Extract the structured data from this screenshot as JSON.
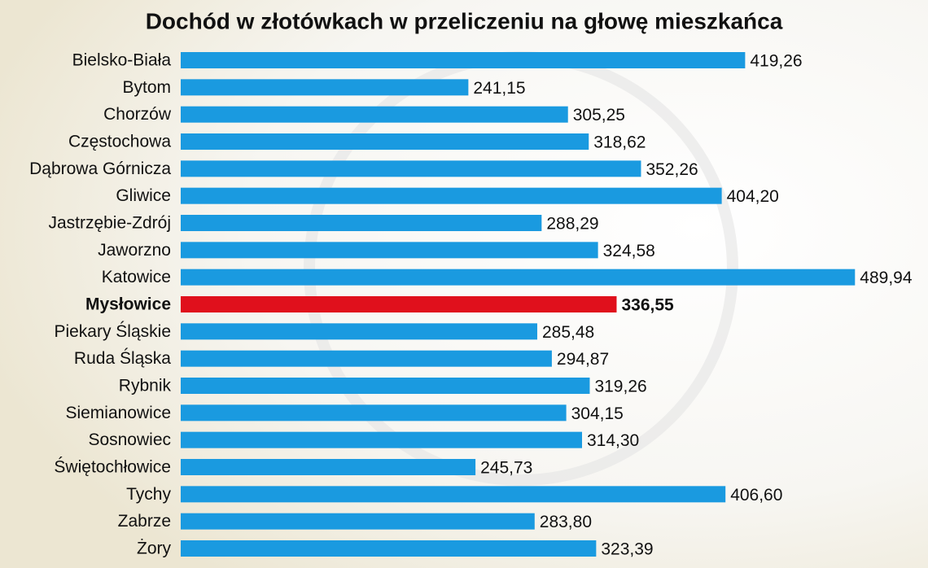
{
  "chart_data": {
    "type": "hbar",
    "title": "Dochód w złotówkach w przeliczeniu na głowę mieszkańca",
    "categories": [
      "Bielsko-Biała",
      "Bytom",
      "Chorzów",
      "Częstochowa",
      "Dąbrowa Górnicza",
      "Gliwice",
      "Jastrzębie-Zdrój",
      "Jaworzno",
      "Katowice",
      "Mysłowice",
      "Piekary Śląskie",
      "Ruda Śląska",
      "Rybnik",
      "Siemianowice",
      "Sosnowiec",
      "Świętochłowice",
      "Tychy",
      "Zabrze",
      "Żory"
    ],
    "values": [
      419.26,
      241.15,
      305.25,
      318.62,
      352.26,
      404.2,
      288.29,
      324.58,
      489.94,
      336.55,
      285.48,
      294.87,
      319.26,
      304.15,
      314.3,
      245.73,
      406.6,
      283.8,
      323.39
    ],
    "value_labels": [
      "419,26",
      "241,15",
      "305,25",
      "318,62",
      "352,26",
      "404,20",
      "288,29",
      "324,58",
      "489,94",
      "336,55",
      "285,48",
      "294,87",
      "319,26",
      "304,15",
      "314,30",
      "245,73",
      "406,60",
      "283,80",
      "323,39"
    ],
    "color": "#1a9ae0",
    "highlight_index": 9,
    "highlight_color": "#e0101c"
  }
}
